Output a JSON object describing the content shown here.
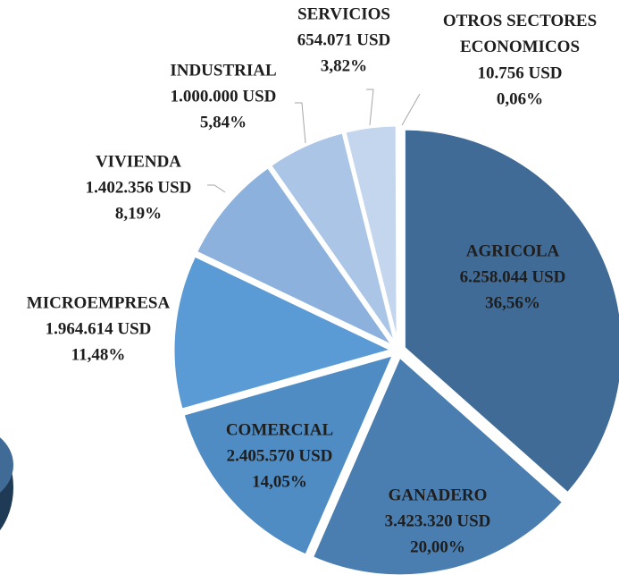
{
  "chart_data": {
    "type": "pie",
    "categories": [
      "AGRICOLA",
      "GANADERO",
      "COMERCIAL",
      "MICROEMPRESA",
      "VIVIENDA",
      "INDUSTRIAL",
      "SERVICIOS",
      "OTROS SECTORES ECONOMICOS"
    ],
    "values": [
      6258044,
      3423320,
      2405570,
      1964614,
      1402356,
      1000000,
      654071,
      10756
    ],
    "value_labels": [
      "6.258.044 USD",
      "3.423.320 USD",
      "2.405.570 USD",
      "1.964.614 USD",
      "1.402.356 USD",
      "1.000.000 USD",
      "654.071 USD",
      "10.756 USD"
    ],
    "percents": [
      36.56,
      20.0,
      14.05,
      11.48,
      8.19,
      5.84,
      3.82,
      0.06
    ],
    "percent_labels": [
      "36,56%",
      "20,00%",
      "14,05%",
      "11,48%",
      "8,19%",
      "5,84%",
      "3,82%",
      "0,06%"
    ],
    "colors": [
      "#3f6b96",
      "#4a7eb0",
      "#4f8cc4",
      "#5b9bd5",
      "#8cb1dd",
      "#aac5e6",
      "#c4d6ee",
      "#dde8f5"
    ]
  }
}
